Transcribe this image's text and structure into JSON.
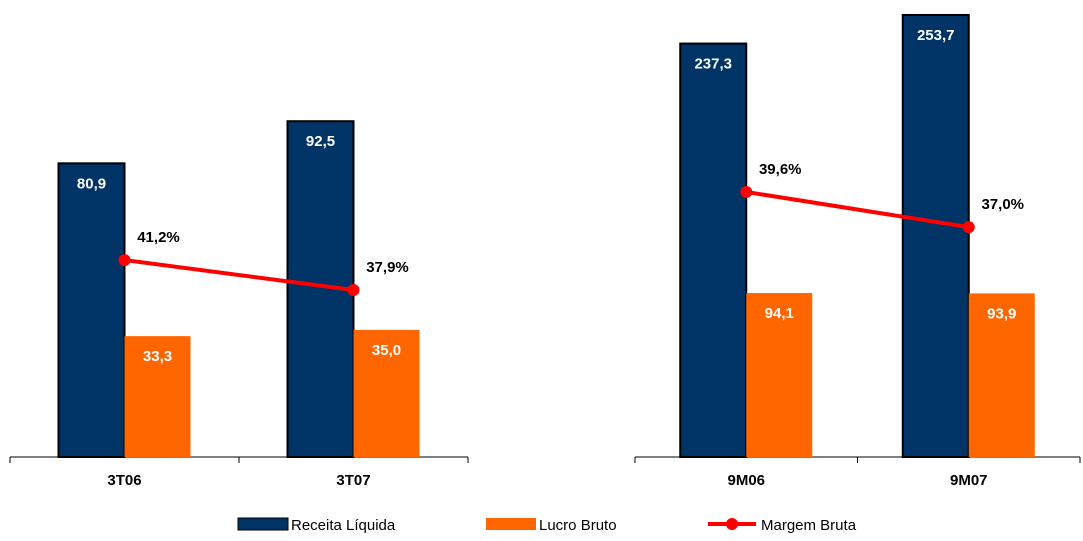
{
  "chart_data": [
    {
      "type": "bar_line",
      "categories": [
        "3T06",
        "3T07"
      ],
      "series": [
        {
          "name": "Receita Líquida",
          "color": "#003366",
          "values": [
            80.9,
            92.5
          ],
          "value_labels": [
            "80,9",
            "92,5"
          ]
        },
        {
          "name": "Lucro Bruto",
          "color": "#ff6600",
          "values": [
            33.3,
            35.0
          ],
          "value_labels": [
            "33,3",
            "35,0"
          ]
        },
        {
          "name": "Margem Bruta",
          "color": "#ff0000",
          "axis": "y2",
          "values": [
            41.2,
            37.9
          ],
          "value_labels": [
            "41,2%",
            "37,9%"
          ]
        }
      ],
      "ylim": [
        0,
        100
      ],
      "y2lim": [
        19.5,
        59.5
      ]
    },
    {
      "type": "bar_line",
      "categories": [
        "9M06",
        "9M07"
      ],
      "series": [
        {
          "name": "Receita Líquida",
          "color": "#003366",
          "values": [
            237.3,
            253.7
          ],
          "value_labels": [
            "237,3",
            "253,7"
          ]
        },
        {
          "name": "Lucro Bruto",
          "color": "#ff6600",
          "values": [
            94.1,
            93.9
          ],
          "value_labels": [
            "94,1",
            "93,9"
          ]
        },
        {
          "name": "Margem Bruta",
          "color": "#ff0000",
          "axis": "y2",
          "values": [
            39.6,
            37.0
          ],
          "value_labels": [
            "39,6%",
            "37,0%"
          ]
        }
      ],
      "ylim": [
        0,
        260
      ],
      "y2lim": [
        20,
        53.5
      ]
    }
  ]
}
